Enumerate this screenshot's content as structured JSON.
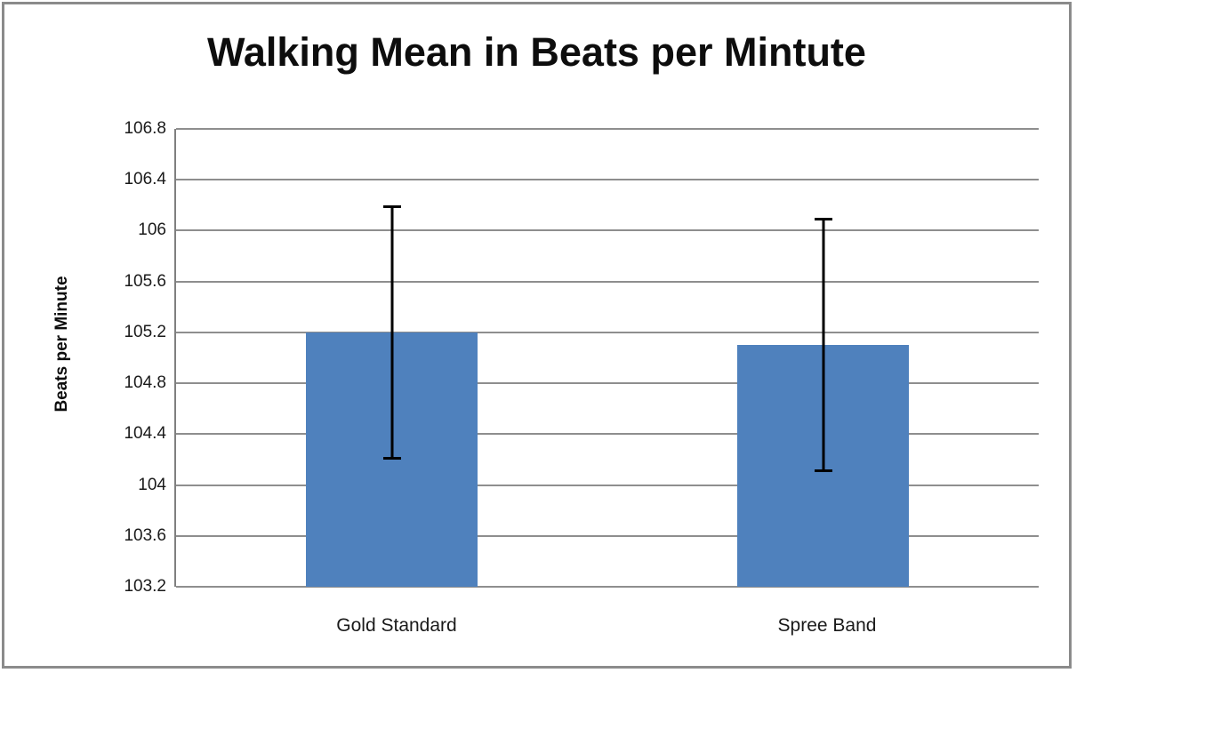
{
  "chart_data": {
    "type": "bar",
    "title": "Walking Mean in Beats per Mintute",
    "xlabel": "",
    "ylabel": "Beats per Minute",
    "categories": [
      "Gold Standard",
      "Spree Band"
    ],
    "values": [
      105.2,
      105.1
    ],
    "error_bars": {
      "low": [
        104.2,
        104.1
      ],
      "high": [
        106.2,
        106.1
      ]
    },
    "ylim": [
      103.2,
      106.8
    ],
    "ytick_step": 0.4,
    "ytick_labels": [
      "106.8",
      "106.4",
      "106",
      "105.6",
      "105.2",
      "104.8",
      "104.4",
      "104",
      "103.6",
      "103.2"
    ],
    "grid": true,
    "legend_position": "none",
    "bar_color": "#4f81bd",
    "gridline_color": "#8e8e8e",
    "axis_line_color": "#7f7f7f",
    "frame_border_color": "#8b8b8b",
    "error_bar_color": "#000000",
    "title_color": "#0d0d0d",
    "tick_label_color": "#1a1a1a"
  }
}
